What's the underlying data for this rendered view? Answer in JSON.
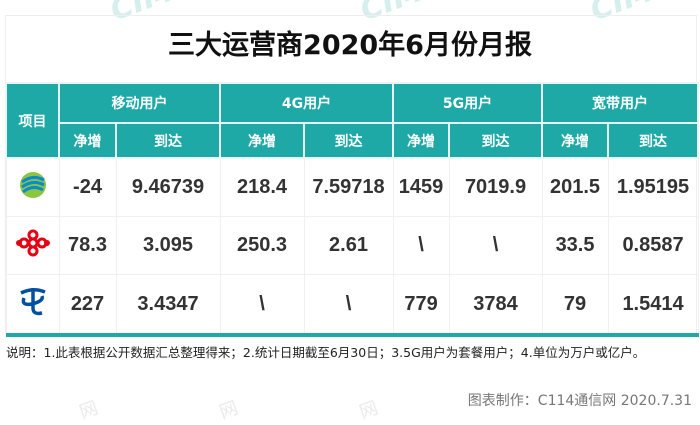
{
  "title": "三大运营商2020年6月份月报",
  "header": {
    "item": "项目",
    "groups": [
      "移动用户",
      "4G用户",
      "5G用户",
      "宽带用户"
    ],
    "net": "净增",
    "reach": "到达"
  },
  "rows": [
    {
      "operator": "china-mobile",
      "values": [
        "-24",
        "9.46739",
        "218.4",
        "7.59718",
        "1459",
        "7019.9",
        "201.5",
        "1.95195"
      ]
    },
    {
      "operator": "china-unicom",
      "values": [
        "78.3",
        "3.095",
        "250.3",
        "2.61",
        "\\",
        "\\",
        "33.5",
        "0.8587"
      ]
    },
    {
      "operator": "china-telecom",
      "values": [
        "227",
        "3.4347",
        "\\",
        "\\",
        "779",
        "3784",
        "79",
        "1.5414"
      ]
    }
  ],
  "notes": "说明：1.此表根据公开数据汇总整理得来；2.统计日期截至6月30日；3.5G用户为套餐用户；4.单位为万户或亿户。",
  "credit": "图表制作：C114通信网  2020.7.31",
  "watermark": "C114 通信网",
  "colors": {
    "teal": "#1ea9a6"
  }
}
